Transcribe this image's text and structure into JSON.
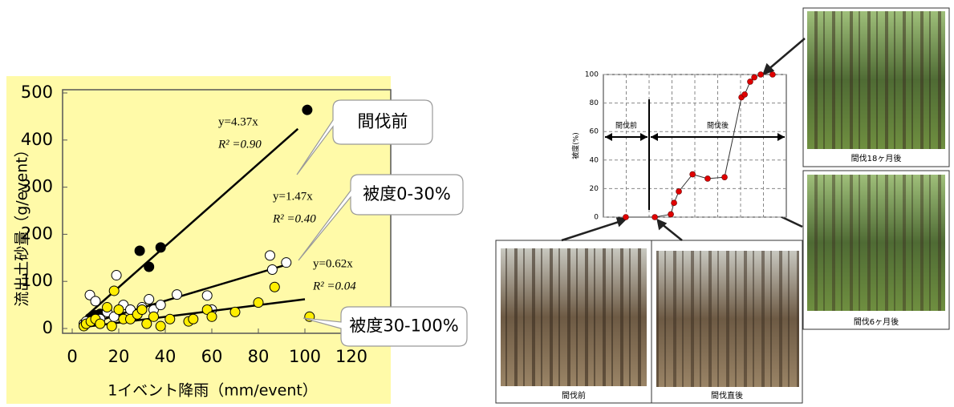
{
  "chart_data": [
    {
      "type": "scatter",
      "xlabel": "1イベント降雨（mm/event）",
      "ylabel": "流出土砂量（g/event）",
      "xlim": [
        0,
        120
      ],
      "ylim": [
        0,
        500
      ],
      "xticks": [
        0,
        20,
        40,
        60,
        80,
        100,
        120
      ],
      "yticks": [
        0,
        100,
        200,
        300,
        400,
        500
      ],
      "background": "#fffaa8",
      "series": [
        {
          "name": "間伐前",
          "color": "#000000",
          "x": [
            7.6,
            10,
            12,
            29,
            33,
            38,
            101
          ],
          "values": [
            22,
            28,
            31,
            165,
            131,
            172,
            464
          ],
          "fit": {
            "slope": 4.37,
            "x": [
              7,
              97
            ],
            "equation": "y=4.37x",
            "r2": "R² =0.90"
          }
        },
        {
          "name": "被度0-30%",
          "color": "#ffffff",
          "x": [
            5,
            6,
            7.6,
            10,
            12,
            15,
            18,
            19,
            22,
            25,
            28,
            30,
            33,
            35,
            38,
            45,
            58,
            60,
            85,
            86,
            92
          ],
          "values": [
            10,
            15,
            71,
            58,
            20,
            35,
            25,
            113,
            50,
            40,
            30,
            45,
            62,
            40,
            50,
            72,
            70,
            40,
            155,
            125,
            140
          ],
          "fit": {
            "slope": 1.47,
            "x": [
              5,
              93
            ],
            "equation": "y=1.47x",
            "r2": "R² =0.40"
          }
        },
        {
          "name": "被度30-100%",
          "color": "#ffee00",
          "x": [
            5,
            6,
            8,
            10,
            12,
            15,
            17,
            18,
            20,
            22,
            25,
            28,
            30,
            32,
            35,
            38,
            42,
            50,
            52,
            58,
            60,
            70,
            80,
            87,
            102
          ],
          "values": [
            5,
            10,
            15,
            20,
            10,
            45,
            5,
            80,
            40,
            20,
            20,
            30,
            40,
            10,
            25,
            5,
            20,
            15,
            20,
            40,
            25,
            35,
            55,
            88,
            25
          ],
          "fit": {
            "slope": 0.62,
            "x": [
              5,
              100
            ],
            "equation": "y=0.62x",
            "r2": "R² =0.04"
          }
        }
      ]
    },
    {
      "type": "line",
      "ylabel": "被度(%)",
      "xlim": [
        0,
        8
      ],
      "ylim": [
        0,
        100
      ],
      "yticks": [
        0,
        20,
        40,
        60,
        80,
        100
      ],
      "x_grid": [
        1,
        2,
        3,
        4,
        5,
        6,
        7
      ],
      "grid": true,
      "color": "#e00000",
      "x": [
        0.98,
        2.25,
        2.95,
        3.09,
        3.3,
        3.9,
        4.56,
        5.3,
        6.04,
        6.18,
        6.42,
        6.6,
        6.88,
        7.4
      ],
      "values": [
        0,
        0,
        2,
        10,
        18,
        30,
        27,
        28,
        84,
        86,
        95,
        98,
        100,
        100
      ],
      "divider": 2,
      "periods": [
        {
          "label": "間伐前",
          "x": [
            0,
            2
          ]
        },
        {
          "label": "間伐後",
          "x": [
            2,
            8
          ]
        }
      ]
    }
  ],
  "photos": [
    {
      "caption": "間伐18ヶ月後"
    },
    {
      "caption": "間伐6ヶ月後"
    },
    {
      "caption": "間伐前"
    },
    {
      "caption": "間伐直後"
    }
  ]
}
